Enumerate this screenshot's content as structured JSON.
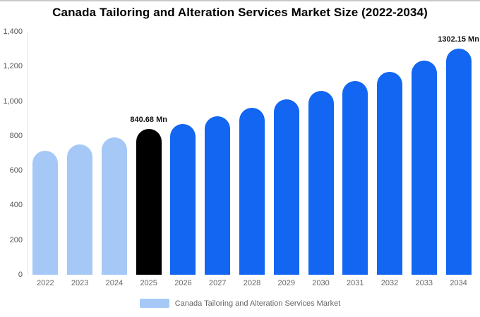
{
  "title": "Canada Tailoring and Alteration Services Market Size (2022-2034)",
  "legend": {
    "label": "Canada Tailoring and Alteration Services Market",
    "swatch_color": "#a5c8f7"
  },
  "colors": {
    "historical": "#a5c8f7",
    "highlight": "#000000",
    "forecast": "#1266f1"
  },
  "chart_data": {
    "type": "bar",
    "title": "Canada Tailoring and Alteration Services Market Size (2022-2034)",
    "xlabel": "",
    "ylabel": "",
    "ylim": [
      0,
      1400
    ],
    "grid": false,
    "legend_position": "bottom",
    "categories": [
      "2022",
      "2023",
      "2024",
      "2025",
      "2026",
      "2027",
      "2028",
      "2029",
      "2030",
      "2031",
      "2032",
      "2033",
      "2034"
    ],
    "values": [
      715,
      750,
      790,
      840.68,
      870,
      915,
      960,
      1010,
      1060,
      1115,
      1170,
      1235,
      1302.15
    ],
    "bar_colors": [
      "#a5c8f7",
      "#a5c8f7",
      "#a5c8f7",
      "#000000",
      "#1266f1",
      "#1266f1",
      "#1266f1",
      "#1266f1",
      "#1266f1",
      "#1266f1",
      "#1266f1",
      "#1266f1",
      "#1266f1"
    ],
    "data_labels": [
      {
        "index": 3,
        "text": "840.68 Mn"
      },
      {
        "index": 12,
        "text": "1302.15 Mn"
      }
    ],
    "yticks": [
      {
        "label": "0",
        "value": 0
      },
      {
        "label": "200",
        "value": 200
      },
      {
        "label": "400",
        "value": 400
      },
      {
        "label": "600",
        "value": 600
      },
      {
        "label": "800",
        "value": 800
      },
      {
        "label": "1,000",
        "value": 1000
      },
      {
        "label": "1,200",
        "value": 1200
      },
      {
        "label": "1,400",
        "value": 1400
      }
    ]
  }
}
